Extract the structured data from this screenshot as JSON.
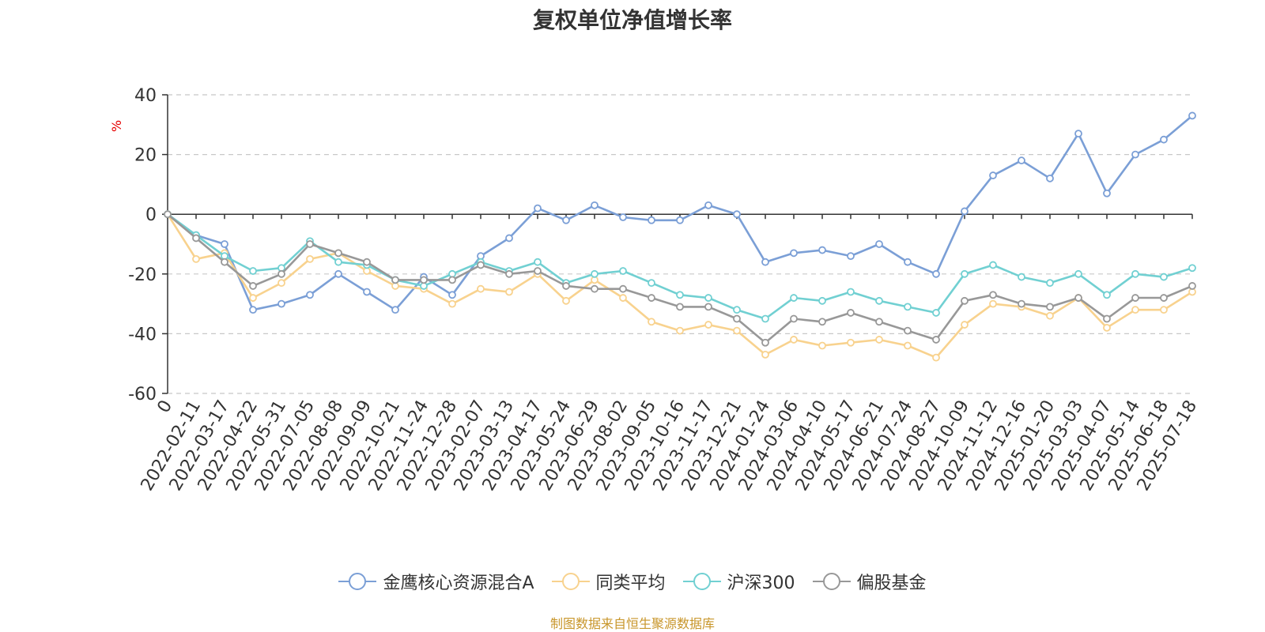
{
  "chart_data": {
    "type": "line",
    "title": "复权单位净值增长率",
    "ylabel": "%",
    "ylim": [
      -60,
      40
    ],
    "yticks": [
      "40",
      "20",
      "0",
      "-20",
      "-40",
      "-60"
    ],
    "x_labels": [
      "0",
      "2022-02-11",
      "2022-03-17",
      "2022-04-22",
      "2022-05-31",
      "2022-07-05",
      "2022-08-08",
      "2022-09-09",
      "2022-10-21",
      "2022-11-24",
      "2022-12-28",
      "2023-02-07",
      "2023-03-13",
      "2023-04-17",
      "2023-05-24",
      "2023-06-29",
      "2023-08-02",
      "2023-09-05",
      "2023-10-16",
      "2023-11-17",
      "2023-12-21",
      "2024-01-24",
      "2024-03-06",
      "2024-04-10",
      "2024-05-17",
      "2024-06-21",
      "2024-07-24",
      "2024-08-27",
      "2024-10-09",
      "2024-11-12",
      "2024-12-16",
      "2025-01-20",
      "2025-03-03",
      "2025-04-07",
      "2025-05-14",
      "2025-06-18",
      "2025-07-18"
    ],
    "grid": true,
    "legend_position": "bottom",
    "series": [
      {
        "name": "金鹰核心资源混合A",
        "color": "#7b9fd6",
        "values": [
          0,
          -7,
          -10,
          -32,
          -30,
          -27,
          -20,
          -26,
          -32,
          -21,
          -27,
          -14,
          -8,
          2,
          -2,
          3,
          -1,
          -2,
          -2,
          3,
          0,
          -16,
          -13,
          -12,
          -14,
          -10,
          -16,
          -20,
          1,
          13,
          18,
          12,
          27,
          7,
          20,
          25,
          33
        ]
      },
      {
        "name": "同类平均",
        "color": "#f8d28e",
        "values": [
          0,
          -15,
          -13,
          -28,
          -23,
          -15,
          -13,
          -19,
          -24,
          -25,
          -30,
          -25,
          -26,
          -20,
          -29,
          -22,
          -28,
          -36,
          -39,
          -37,
          -39,
          -47,
          -42,
          -44,
          -43,
          -42,
          -44,
          -48,
          -37,
          -30,
          -31,
          -34,
          -28,
          -38,
          -32,
          -32,
          -26
        ]
      },
      {
        "name": "沪深300",
        "color": "#71d0d2",
        "values": [
          0,
          -7,
          -14,
          -19,
          -18,
          -9,
          -16,
          -17,
          -22,
          -24,
          -20,
          -16,
          -19,
          -16,
          -23,
          -20,
          -19,
          -23,
          -27,
          -28,
          -32,
          -35,
          -28,
          -29,
          -26,
          -29,
          -31,
          -33,
          -20,
          -17,
          -21,
          -23,
          -20,
          -27,
          -20,
          -21,
          -18
        ]
      },
      {
        "name": "偏股基金",
        "color": "#989898",
        "values": [
          0,
          -8,
          -16,
          -24,
          -20,
          -10,
          -13,
          -16,
          -22,
          -22,
          -22,
          -17,
          -20,
          -19,
          -24,
          -25,
          -25,
          -28,
          -31,
          -31,
          -35,
          -43,
          -35,
          -36,
          -33,
          -36,
          -39,
          -42,
          -29,
          -27,
          -30,
          -31,
          -28,
          -35,
          -28,
          -28,
          -24
        ]
      }
    ]
  },
  "legend": {
    "items": [
      "金鹰核心资源混合A",
      "同类平均",
      "沪深300",
      "偏股基金"
    ]
  },
  "footer": {
    "source": "制图数据来自恒生聚源数据库"
  }
}
